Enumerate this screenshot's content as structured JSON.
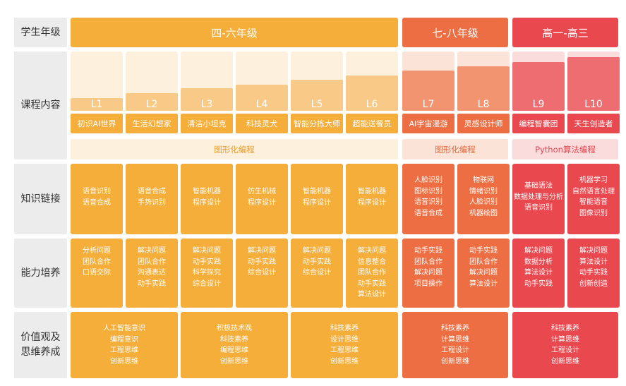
{
  "colors": {
    "yellow": "#f5ae3a",
    "yellow_light": "#f8c987",
    "yellow_track": "#fdf0dc",
    "orange": "#ee6e43",
    "orange_light": "#f2946f",
    "orange_track": "#fce3d7",
    "red": "#e9484f",
    "red_light": "#ee6d71",
    "red_track": "#fadcdc",
    "label_bg": "#ececec"
  },
  "rows": {
    "grade": "学生年级",
    "course": "课程内容",
    "knowledge": "知识链接",
    "ability": "能力培养",
    "values": "价值观及思维养成"
  },
  "bands": [
    "四-六年级",
    "七-八年级",
    "高一-高三"
  ],
  "levels": [
    {
      "label": "L1",
      "name": "初识AI世界",
      "fill": 0.16
    },
    {
      "label": "L2",
      "name": "生活幻想家",
      "fill": 0.26
    },
    {
      "label": "L3",
      "name": "清洁小坦克",
      "fill": 0.36
    },
    {
      "label": "L4",
      "name": "科技灵犬",
      "fill": 0.44
    },
    {
      "label": "L5",
      "name": "智能分拣大师",
      "fill": 0.53
    },
    {
      "label": "L6",
      "name": "超能送餐员",
      "fill": 0.62
    },
    {
      "label": "L7",
      "name": "AI宇宙漫游",
      "fill": 0.72
    },
    {
      "label": "L8",
      "name": "灵感设计师",
      "fill": 0.81
    },
    {
      "label": "L9",
      "name": "编程智囊团",
      "fill": 0.9
    },
    {
      "label": "L10",
      "name": "天生创造者",
      "fill": 1.0
    }
  ],
  "categories": [
    "图形化编程",
    "图形化编程",
    "Python算法编程"
  ],
  "knowledge": [
    [
      "语音识别",
      "语音合成"
    ],
    [
      "语音合成",
      "手势识别"
    ],
    [
      "智能机器",
      "程序设计"
    ],
    [
      "仿生机械",
      "程序设计"
    ],
    [
      "智能机器",
      "程序设计"
    ],
    [
      "智能机器",
      "程序设计"
    ],
    [
      "人脸识别",
      "图标识别",
      "语音识别",
      "语音合成"
    ],
    [
      "物联网",
      "情绪识别",
      "人脸识别",
      "机器绘图"
    ],
    [
      "基础语法",
      "数据处理与分析",
      "语音识别"
    ],
    [
      "机器学习",
      "自然语言处理",
      "智能语音",
      "图像识别"
    ]
  ],
  "ability": [
    [
      "分析问题",
      "团队合作",
      "口语交际"
    ],
    [
      "解决问题",
      "团队合作",
      "沟通表达",
      "动手实践"
    ],
    [
      "解决问题",
      "动手实践",
      "科学探究",
      "综合设计"
    ],
    [
      "解决问题",
      "动手实践",
      "综合设计"
    ],
    [
      "解决问题",
      "动手实践",
      "综合设计"
    ],
    [
      "解决问题",
      "信息整合",
      "团队合作",
      "动手实践",
      "算法设计"
    ],
    [
      "动手实践",
      "团队合作",
      "解决问题",
      "项目操作"
    ],
    [
      "动手实践",
      "团队合作",
      "解决问题",
      "算法设计"
    ],
    [
      "解决问题",
      "数据分析",
      "算法设计",
      "动手实践"
    ],
    [
      "解决问题",
      "算法设计",
      "动手实践",
      "创新创造"
    ]
  ],
  "values": [
    [
      "人工智能意识",
      "编程意识",
      "工程思维",
      "创新思维"
    ],
    [
      "积极技术观",
      "科技素养",
      "编程思维",
      "创新思维"
    ],
    [
      "科技素养",
      "设计思维",
      "工程思维",
      "创新思维"
    ],
    [
      "科技素养",
      "计算思维",
      "工程设计",
      "创新思维"
    ],
    [
      "科技素养",
      "计算思维",
      "工程设计",
      "创新思维"
    ]
  ]
}
